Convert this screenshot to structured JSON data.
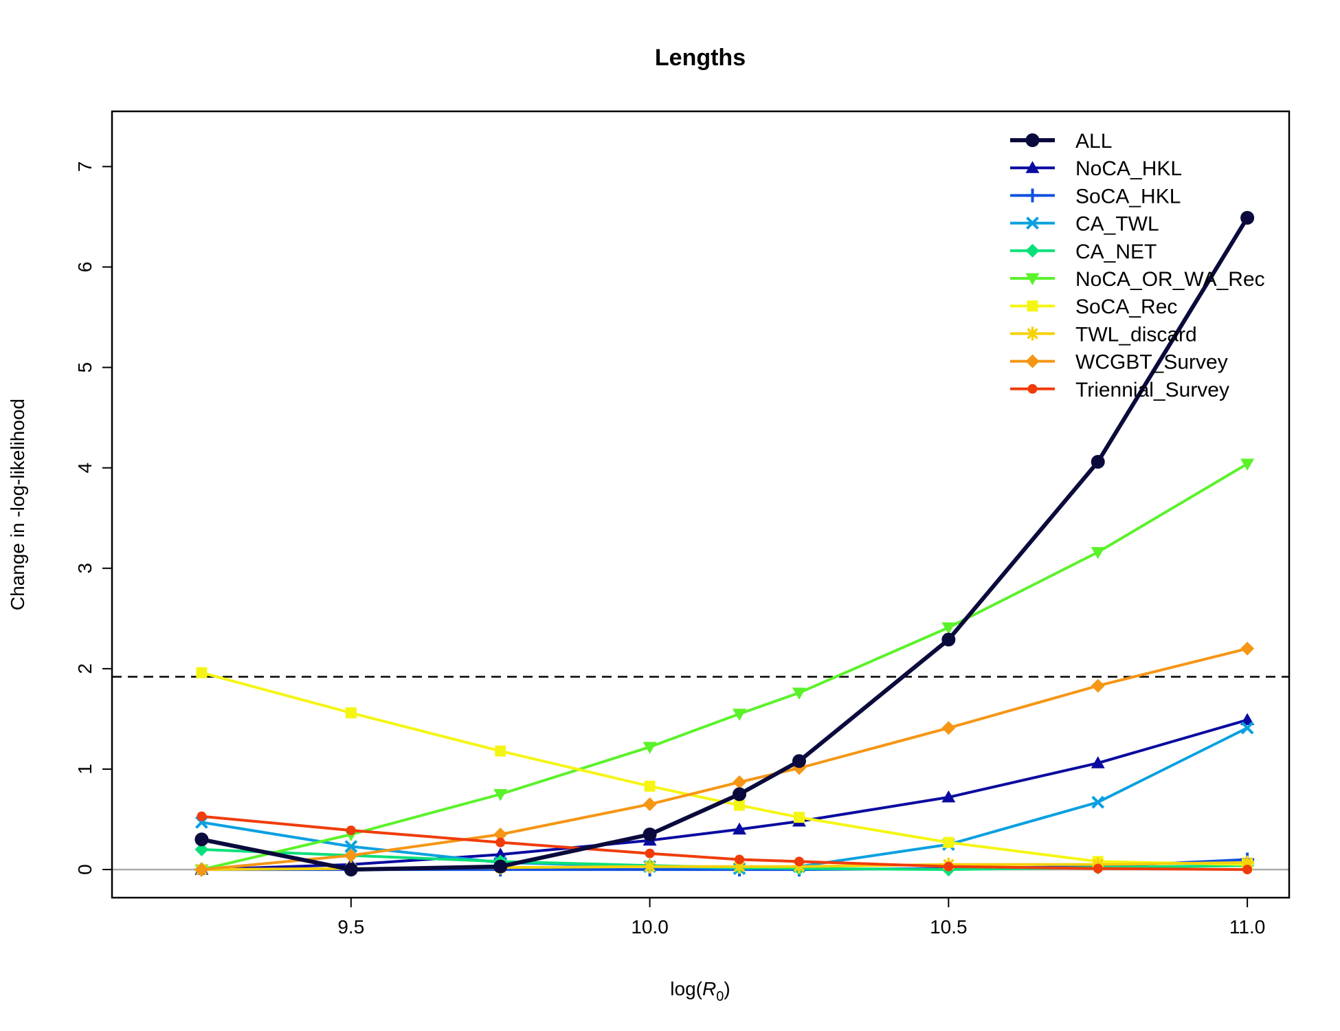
{
  "chart_data": {
    "type": "line",
    "title": "Lengths",
    "xlabel": "log(R0)",
    "xlabel_parts": {
      "prefix": "log(",
      "var": "R",
      "sub": "0",
      "suffix": ")"
    },
    "ylabel": "Change in -log-likelihood",
    "xlim": [
      9.1,
      11.07
    ],
    "ylim": [
      -0.28,
      7.55
    ],
    "x_ticks": [
      9.5,
      10.0,
      10.5,
      11.0
    ],
    "x_tick_labels": [
      "9.5",
      "10.0",
      "10.5",
      "11.0"
    ],
    "y_ticks": [
      0,
      1,
      2,
      3,
      4,
      5,
      6,
      7
    ],
    "y_tick_labels": [
      "0",
      "1",
      "2",
      "3",
      "4",
      "5",
      "6",
      "7"
    ],
    "hline_dashed": 1.92,
    "hline_zero": 0,
    "legend_position": "top-right",
    "x": [
      9.25,
      9.5,
      9.75,
      10.0,
      10.15,
      10.25,
      10.5,
      10.75,
      11.0
    ],
    "series": [
      {
        "name": "ALL",
        "color": "#0a0a3c",
        "marker": "circle",
        "width": 6,
        "values": [
          0.3,
          0.0,
          0.03,
          0.35,
          0.75,
          1.08,
          2.29,
          4.06,
          6.49
        ]
      },
      {
        "name": "NoCA_HKL",
        "color": "#0a0aa0",
        "marker": "triangle-up",
        "width": 4,
        "values": [
          0.0,
          0.05,
          0.15,
          0.29,
          0.4,
          0.48,
          0.72,
          1.06,
          1.49
        ]
      },
      {
        "name": "SoCA_HKL",
        "color": "#1050e0",
        "marker": "plus",
        "width": 4,
        "values": [
          0.0,
          0.0,
          0.0,
          0.0,
          0.0,
          0.0,
          0.01,
          0.03,
          0.1
        ]
      },
      {
        "name": "CA_TWL",
        "color": "#0aa0e0",
        "marker": "cross",
        "width": 4,
        "values": [
          0.47,
          0.23,
          0.07,
          0.03,
          0.01,
          0.03,
          0.25,
          0.67,
          1.41
        ]
      },
      {
        "name": "CA_NET",
        "color": "#0ae07a",
        "marker": "diamond",
        "width": 4,
        "values": [
          0.2,
          0.14,
          0.08,
          0.04,
          0.02,
          0.01,
          0.0,
          0.02,
          0.04
        ]
      },
      {
        "name": "NoCA_OR_WA_Rec",
        "color": "#5af22a",
        "marker": "triangle-down",
        "width": 4,
        "values": [
          0.0,
          0.35,
          0.75,
          1.22,
          1.55,
          1.76,
          2.41,
          3.16,
          4.04
        ]
      },
      {
        "name": "SoCA_Rec",
        "color": "#f5f514",
        "marker": "square",
        "width": 4,
        "values": [
          1.96,
          1.56,
          1.18,
          0.83,
          0.64,
          0.52,
          0.27,
          0.08,
          0.05
        ]
      },
      {
        "name": "TWL_discard",
        "color": "#f5d20a",
        "marker": "asterisk",
        "width": 4,
        "values": [
          0.0,
          0.01,
          0.02,
          0.03,
          0.03,
          0.03,
          0.05,
          0.05,
          0.07
        ]
      },
      {
        "name": "WCGBT_Survey",
        "color": "#f59614",
        "marker": "diamond",
        "width": 4,
        "values": [
          0.0,
          0.14,
          0.35,
          0.65,
          0.87,
          1.01,
          1.41,
          1.83,
          2.2
        ]
      },
      {
        "name": "Triennial_Survey",
        "color": "#f03c0a",
        "marker": "dot",
        "width": 4,
        "values": [
          0.53,
          0.39,
          0.27,
          0.16,
          0.1,
          0.08,
          0.03,
          0.01,
          0.0
        ]
      }
    ]
  }
}
